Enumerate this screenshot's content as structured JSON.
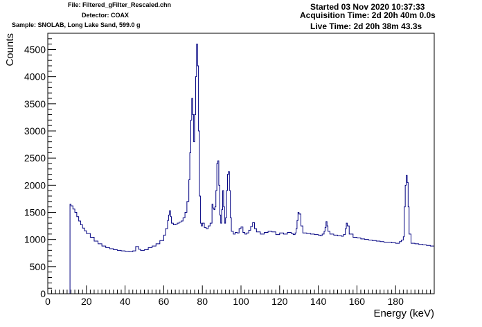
{
  "header": {
    "file": "File: Filtered_gFilter_Rescaled.chn",
    "detector": "Detector: COAX",
    "sample": "Sample: SNOLAB, Long Lake Sand, 599.0 g",
    "started": "Started 03 Nov 2020 10:37:33",
    "acquisition": "Acquisition Time: 2d 20h 40m 0.0s",
    "live": "Live Time: 2d 20h 38m 43.3s"
  },
  "chart_data": {
    "type": "line",
    "title": "",
    "xlabel": "Energy (keV)",
    "ylabel": "Counts",
    "xlim": [
      0,
      200
    ],
    "ylim": [
      0,
      4800
    ],
    "x_ticks": [
      0,
      20,
      40,
      60,
      80,
      100,
      120,
      140,
      160,
      180
    ],
    "y_ticks": [
      0,
      500,
      1000,
      1500,
      2000,
      2500,
      3000,
      3500,
      4000,
      4500
    ],
    "grid": false,
    "line_color": "#000080",
    "series": [
      {
        "x": [
          11.5,
          12,
          13,
          14,
          15,
          16,
          17,
          18,
          19,
          20,
          22,
          24,
          26,
          28,
          30,
          32,
          34,
          36,
          38,
          40,
          42,
          44,
          45.5,
          47,
          48,
          50,
          52,
          54,
          56,
          58,
          60,
          61,
          62,
          62.5,
          63,
          63.5,
          64,
          65,
          66,
          67,
          68,
          69,
          70,
          71,
          72,
          73,
          73.5,
          74,
          74.5,
          75,
          75.5,
          76,
          76.5,
          77,
          77.5,
          78,
          78.5,
          79,
          79.5,
          80,
          81,
          82,
          83,
          84,
          85,
          85.5,
          86,
          86.5,
          87,
          87.5,
          88,
          88.5,
          89,
          89.5,
          90,
          90.5,
          91,
          91.5,
          92,
          92.5,
          93,
          93.5,
          94,
          94.5,
          95,
          96,
          97,
          98,
          99,
          100,
          101,
          102,
          103,
          104,
          105,
          106,
          107,
          108,
          110,
          112,
          114,
          116,
          118,
          120,
          122,
          124,
          126,
          127,
          128,
          128.5,
          129,
          129.5,
          130,
          131,
          132,
          134,
          136,
          138,
          140,
          141,
          142,
          143,
          143.5,
          144,
          144.5,
          145,
          146,
          148,
          150,
          152,
          153,
          154,
          154.5,
          155,
          156,
          158,
          160,
          162,
          164,
          166,
          168,
          170,
          172,
          174,
          176,
          178,
          180,
          182,
          183,
          184,
          184.5,
          185,
          185.5,
          186,
          186.5,
          187,
          188,
          190,
          192,
          194,
          196,
          198,
          200
        ],
        "values": [
          1650,
          1620,
          1560,
          1500,
          1420,
          1340,
          1270,
          1210,
          1160,
          1110,
          1040,
          970,
          920,
          880,
          850,
          830,
          810,
          800,
          790,
          780,
          775,
          790,
          870,
          820,
          800,
          810,
          850,
          880,
          920,
          980,
          1080,
          1200,
          1350,
          1450,
          1530,
          1420,
          1300,
          1270,
          1280,
          1300,
          1320,
          1340,
          1400,
          1500,
          1700,
          2100,
          2600,
          3200,
          3600,
          3300,
          2800,
          3300,
          4000,
          4600,
          4200,
          3000,
          1800,
          1300,
          1250,
          1300,
          1220,
          1200,
          1250,
          1300,
          1650,
          1580,
          1550,
          1600,
          1900,
          2400,
          2450,
          2000,
          1450,
          1300,
          1550,
          1900,
          1600,
          1300,
          1400,
          1900,
          2200,
          2250,
          1900,
          1400,
          1150,
          1100,
          1130,
          1120,
          1200,
          1230,
          1130,
          1100,
          1120,
          1170,
          1240,
          1310,
          1200,
          1140,
          1100,
          1130,
          1150,
          1140,
          1090,
          1120,
          1100,
          1130,
          1110,
          1090,
          1120,
          1200,
          1350,
          1500,
          1470,
          1250,
          1120,
          1110,
          1100,
          1090,
          1080,
          1070,
          1100,
          1150,
          1220,
          1330,
          1250,
          1150,
          1100,
          1080,
          1070,
          1060,
          1090,
          1200,
          1300,
          1250,
          1100,
          1040,
          1030,
          1010,
          1000,
          990,
          980,
          970,
          960,
          950,
          950,
          940,
          930,
          960,
          990,
          1050,
          1600,
          2000,
          2180,
          2050,
          1600,
          1100,
          930,
          920,
          910,
          900,
          890,
          880,
          880
        ]
      }
    ]
  }
}
